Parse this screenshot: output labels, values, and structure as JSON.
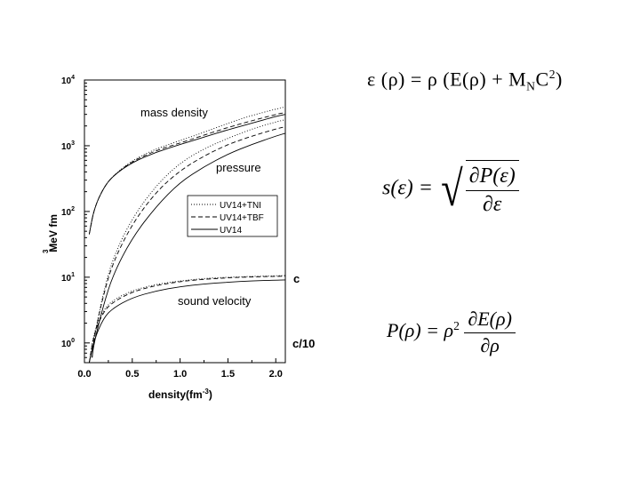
{
  "chart_data": {
    "type": "line",
    "yscale": "log",
    "xlim": [
      0.0,
      2.1
    ],
    "ylim_log10": [
      -0.3,
      4
    ],
    "x_ticks": [
      "0.0",
      "0.5",
      "1.0",
      "1.5",
      "2.0"
    ],
    "y_ticks": [
      {
        "base": "10",
        "exp": "0"
      },
      {
        "base": "10",
        "exp": "1"
      },
      {
        "base": "10",
        "exp": "2"
      },
      {
        "base": "10",
        "exp": "3"
      },
      {
        "base": "10",
        "exp": "4"
      }
    ],
    "xlabel": "density(fm",
    "xlabel_sup": "-3",
    "xlabel_close": ")",
    "ylabel": "MeV fm",
    "ylabel_sup": "3",
    "legend": [
      "UV14+TNI",
      "UV14+TBF",
      "UV14"
    ],
    "legend_placement": "center-right",
    "annotations": {
      "mass_density": "mass density",
      "pressure": "pressure",
      "sound_velocity": "sound velocity",
      "c": "c",
      "c10": "c/10"
    },
    "series": [
      {
        "name": "UV14+TNI",
        "group": "mass density",
        "style": "dotted",
        "x": [
          0.05,
          0.1,
          0.2,
          0.3,
          0.5,
          0.75,
          1.0,
          1.25,
          1.5,
          1.75,
          2.0,
          2.1
        ],
        "y": [
          45,
          110,
          230,
          350,
          600,
          900,
          1200,
          1600,
          2200,
          2900,
          3600,
          3900
        ]
      },
      {
        "name": "UV14+TBF",
        "group": "mass density",
        "style": "dashed",
        "x": [
          0.05,
          0.1,
          0.2,
          0.3,
          0.5,
          0.75,
          1.0,
          1.25,
          1.5,
          1.75,
          2.0,
          2.1
        ],
        "y": [
          45,
          110,
          230,
          350,
          580,
          850,
          1100,
          1450,
          1900,
          2400,
          3000,
          3200
        ]
      },
      {
        "name": "UV14",
        "group": "mass density",
        "style": "solid",
        "x": [
          0.05,
          0.1,
          0.2,
          0.3,
          0.5,
          0.75,
          1.0,
          1.25,
          1.5,
          1.75,
          2.0,
          2.1
        ],
        "y": [
          45,
          110,
          230,
          350,
          560,
          800,
          1050,
          1350,
          1750,
          2200,
          2800,
          3000
        ]
      },
      {
        "name": "UV14+TNI",
        "group": "pressure",
        "style": "dotted",
        "x": [
          0.08,
          0.1,
          0.2,
          0.3,
          0.5,
          0.75,
          1.0,
          1.25,
          1.5,
          1.75,
          2.0,
          2.1
        ],
        "y": [
          0.6,
          1.2,
          6,
          20,
          80,
          250,
          550,
          900,
          1300,
          1800,
          2300,
          2500
        ]
      },
      {
        "name": "UV14+TBF",
        "group": "pressure",
        "style": "dashed",
        "x": [
          0.08,
          0.1,
          0.2,
          0.3,
          0.5,
          0.75,
          1.0,
          1.25,
          1.5,
          1.75,
          2.0,
          2.1
        ],
        "y": [
          0.6,
          1.2,
          5.5,
          17,
          65,
          200,
          420,
          700,
          1050,
          1400,
          1800,
          1950
        ]
      },
      {
        "name": "UV14",
        "group": "pressure",
        "style": "solid",
        "x": [
          0.08,
          0.1,
          0.2,
          0.3,
          0.5,
          0.75,
          1.0,
          1.25,
          1.5,
          1.75,
          2.0,
          2.1
        ],
        "y": [
          0.6,
          1.0,
          3.8,
          11,
          40,
          120,
          280,
          480,
          750,
          1050,
          1400,
          1550
        ]
      },
      {
        "name": "UV14+TNI",
        "group": "sound velocity",
        "style": "dotted",
        "x": [
          0.05,
          0.1,
          0.2,
          0.3,
          0.5,
          0.75,
          1.0,
          1.25,
          1.5,
          1.75,
          2.0,
          2.1
        ],
        "y": [
          0.5,
          1.5,
          3.2,
          4.5,
          6.3,
          7.8,
          8.8,
          9.6,
          10.0,
          10.3,
          10.5,
          10.6
        ]
      },
      {
        "name": "UV14+TBF",
        "group": "sound velocity",
        "style": "dashed",
        "x": [
          0.05,
          0.1,
          0.2,
          0.3,
          0.5,
          0.75,
          1.0,
          1.25,
          1.5,
          1.75,
          2.0,
          2.1
        ],
        "y": [
          0.5,
          1.4,
          3.0,
          4.2,
          6.0,
          7.5,
          8.6,
          9.3,
          9.8,
          10.1,
          10.3,
          10.4
        ]
      },
      {
        "name": "UV14",
        "group": "sound velocity",
        "style": "solid",
        "x": [
          0.05,
          0.1,
          0.2,
          0.3,
          0.5,
          0.75,
          1.0,
          1.25,
          1.5,
          1.75,
          2.0,
          2.1
        ],
        "y": [
          0.5,
          1.1,
          2.4,
          3.4,
          4.9,
          6.2,
          7.2,
          7.9,
          8.4,
          8.8,
          9.0,
          9.1
        ]
      }
    ]
  },
  "equations": {
    "energy_density": {
      "eps": "ε",
      "rho_arg": "(ρ)",
      "equals": "=",
      "rho": "ρ",
      "E_open": "(E(ρ) + M",
      "N": "N",
      "C": "C",
      "two": "2",
      "close": ")"
    },
    "sound_speed": {
      "lhs": "s(ε) =",
      "num": "∂P(ε)",
      "den": "∂ε"
    },
    "pressure": {
      "lhs": "P(ρ) = ρ",
      "two": "2",
      "num": "∂E(ρ)",
      "den": "∂ρ"
    }
  }
}
